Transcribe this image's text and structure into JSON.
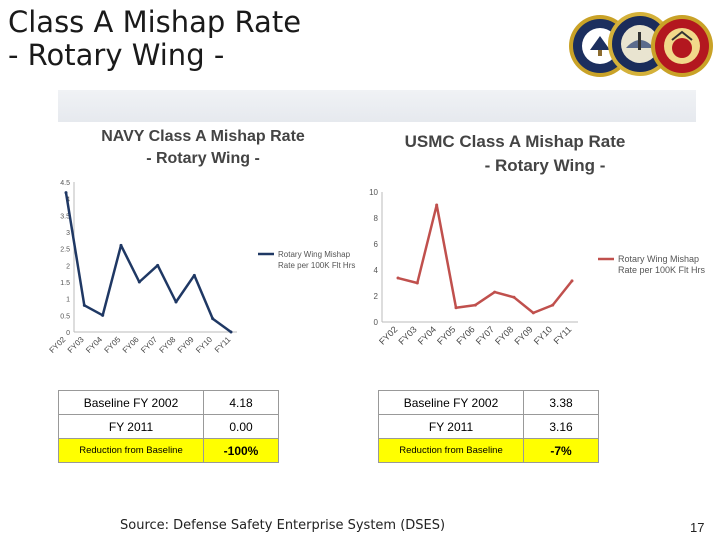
{
  "slide": {
    "title_line1": "Class A Mishap Rate",
    "title_line2": "- Rotary Wing -",
    "source": "Source: Defense Safety Enterprise System (DSES)",
    "page_number": "17",
    "seals": [
      "Department of the Navy",
      "United States Navy",
      "United States Marine Corps"
    ]
  },
  "chart_data": [
    {
      "type": "line",
      "title": "NAVY  Class A Mishap Rate",
      "subtitle": "- Rotary Wing -",
      "categories": [
        "FY02",
        "FY03",
        "FY04",
        "FY05",
        "FY06",
        "FY07",
        "FY08",
        "FY09",
        "FY10",
        "FY11"
      ],
      "series": [
        {
          "name": "Rotary Wing Mishap Rate per 100K Flt Hrs",
          "color": "#1f3864",
          "values": [
            4.18,
            0.8,
            0.5,
            2.6,
            1.5,
            2.0,
            0.9,
            1.7,
            0.4,
            0.0
          ]
        }
      ],
      "ylim": [
        0,
        4.5
      ],
      "yticks": [
        "0",
        "0.5",
        "1",
        "1.5",
        "2",
        "2.5",
        "3",
        "3.5",
        "4",
        "4.5"
      ],
      "legend_position": "right",
      "grid": false
    },
    {
      "type": "line",
      "title": "USMC Class A Mishap Rate",
      "subtitle": "- Rotary Wing -",
      "categories": [
        "FY02",
        "FY03",
        "FY04",
        "FY05",
        "FY06",
        "FY07",
        "FY08",
        "FY09",
        "FY10",
        "FY11"
      ],
      "series": [
        {
          "name": "Rotary Wing Mishap Rate per 100K Flt Hrs",
          "color": "#c0504d",
          "values": [
            3.38,
            3.0,
            9.0,
            1.1,
            1.3,
            2.3,
            1.9,
            0.7,
            1.3,
            3.16
          ]
        }
      ],
      "ylim": [
        0,
        10
      ],
      "yticks": [
        "0",
        "2",
        "4",
        "6",
        "8",
        "10"
      ],
      "legend_position": "right",
      "grid": false
    }
  ],
  "tables": [
    {
      "rows": [
        {
          "label": "Baseline FY 2002",
          "value": "4.18"
        },
        {
          "label": "FY 2011",
          "value": "0.00"
        },
        {
          "label": "Reduction from Baseline",
          "value": "-100%"
        }
      ]
    },
    {
      "rows": [
        {
          "label": "Baseline FY 2002",
          "value": "3.38"
        },
        {
          "label": "FY 2011",
          "value": "3.16"
        },
        {
          "label": "Reduction from Baseline",
          "value": "-7%"
        }
      ]
    }
  ]
}
